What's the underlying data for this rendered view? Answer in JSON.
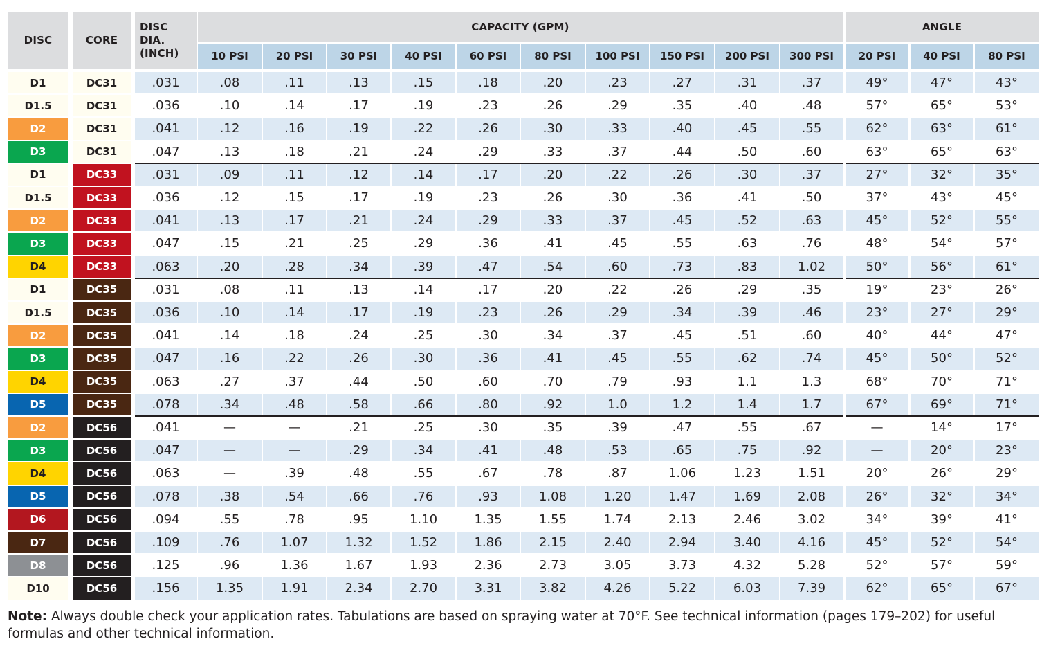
{
  "headers": {
    "disc": "DISC",
    "core": "CORE",
    "disc_dia": "DISC DIA.\n(INCH)",
    "capacity": "CAPACITY (GPM)",
    "angle": "ANGLE",
    "capacity_psi": [
      "10 PSI",
      "20 PSI",
      "30 PSI",
      "40 PSI",
      "60 PSI",
      "80 PSI",
      "100 PSI",
      "150 PSI",
      "200 PSI",
      "300 PSI"
    ],
    "angle_psi": [
      "20 PSI",
      "40 PSI",
      "80 PSI"
    ]
  },
  "colors": {
    "header_gray": "#dcdddf",
    "subheader_blue": "#bdd5e7",
    "row_blue": "#dde9f4",
    "label_cream": "#fffdf0",
    "disc": {
      "D2": "#f89c3f",
      "D3": "#0aa64f",
      "D4": "#ffd400",
      "D5": "#0865b0",
      "D6": "#b3171f",
      "D7": "#4a2712",
      "D8": "#8d9094"
    },
    "core": {
      "DC31": "#fffdf0",
      "DC33": "#c1121f",
      "DC35": "#4a2712",
      "DC56": "#231f20"
    }
  },
  "rows": [
    {
      "disc": "D1",
      "core": "DC31",
      "dia": ".031",
      "cap": [
        ".08",
        ".11",
        ".13",
        ".15",
        ".18",
        ".20",
        ".23",
        ".27",
        ".31",
        ".37"
      ],
      "angle": [
        "49°",
        "47°",
        "43°"
      ]
    },
    {
      "disc": "D1.5",
      "core": "DC31",
      "dia": ".036",
      "cap": [
        ".10",
        ".14",
        ".17",
        ".19",
        ".23",
        ".26",
        ".29",
        ".35",
        ".40",
        ".48"
      ],
      "angle": [
        "57°",
        "65°",
        "53°"
      ]
    },
    {
      "disc": "D2",
      "core": "DC31",
      "dia": ".041",
      "cap": [
        ".12",
        ".16",
        ".19",
        ".22",
        ".26",
        ".30",
        ".33",
        ".40",
        ".45",
        ".55"
      ],
      "angle": [
        "62°",
        "63°",
        "61°"
      ]
    },
    {
      "disc": "D3",
      "core": "DC31",
      "dia": ".047",
      "cap": [
        ".13",
        ".18",
        ".21",
        ".24",
        ".29",
        ".33",
        ".37",
        ".44",
        ".50",
        ".60"
      ],
      "angle": [
        "63°",
        "65°",
        "63°"
      ]
    },
    {
      "disc": "D1",
      "core": "DC33",
      "dia": ".031",
      "cap": [
        ".09",
        ".11",
        ".12",
        ".14",
        ".17",
        ".20",
        ".22",
        ".26",
        ".30",
        ".37"
      ],
      "angle": [
        "27°",
        "32°",
        "35°"
      ]
    },
    {
      "disc": "D1.5",
      "core": "DC33",
      "dia": ".036",
      "cap": [
        ".12",
        ".15",
        ".17",
        ".19",
        ".23",
        ".26",
        ".30",
        ".36",
        ".41",
        ".50"
      ],
      "angle": [
        "37°",
        "43°",
        "45°"
      ]
    },
    {
      "disc": "D2",
      "core": "DC33",
      "dia": ".041",
      "cap": [
        ".13",
        ".17",
        ".21",
        ".24",
        ".29",
        ".33",
        ".37",
        ".45",
        ".52",
        ".63"
      ],
      "angle": [
        "45°",
        "52°",
        "55°"
      ]
    },
    {
      "disc": "D3",
      "core": "DC33",
      "dia": ".047",
      "cap": [
        ".15",
        ".21",
        ".25",
        ".29",
        ".36",
        ".41",
        ".45",
        ".55",
        ".63",
        ".76"
      ],
      "angle": [
        "48°",
        "54°",
        "57°"
      ]
    },
    {
      "disc": "D4",
      "core": "DC33",
      "dia": ".063",
      "cap": [
        ".20",
        ".28",
        ".34",
        ".39",
        ".47",
        ".54",
        ".60",
        ".73",
        ".83",
        "1.02"
      ],
      "angle": [
        "50°",
        "56°",
        "61°"
      ]
    },
    {
      "disc": "D1",
      "core": "DC35",
      "dia": ".031",
      "cap": [
        ".08",
        ".11",
        ".13",
        ".14",
        ".17",
        ".20",
        ".22",
        ".26",
        ".29",
        ".35"
      ],
      "angle": [
        "19°",
        "23°",
        "26°"
      ]
    },
    {
      "disc": "D1.5",
      "core": "DC35",
      "dia": ".036",
      "cap": [
        ".10",
        ".14",
        ".17",
        ".19",
        ".23",
        ".26",
        ".29",
        ".34",
        ".39",
        ".46"
      ],
      "angle": [
        "23°",
        "27°",
        "29°"
      ]
    },
    {
      "disc": "D2",
      "core": "DC35",
      "dia": ".041",
      "cap": [
        ".14",
        ".18",
        ".24",
        ".25",
        ".30",
        ".34",
        ".37",
        ".45",
        ".51",
        ".60"
      ],
      "angle": [
        "40°",
        "44°",
        "47°"
      ]
    },
    {
      "disc": "D3",
      "core": "DC35",
      "dia": ".047",
      "cap": [
        ".16",
        ".22",
        ".26",
        ".30",
        ".36",
        ".41",
        ".45",
        ".55",
        ".62",
        ".74"
      ],
      "angle": [
        "45°",
        "50°",
        "52°"
      ]
    },
    {
      "disc": "D4",
      "core": "DC35",
      "dia": ".063",
      "cap": [
        ".27",
        ".37",
        ".44",
        ".50",
        ".60",
        ".70",
        ".79",
        ".93",
        "1.1",
        "1.3"
      ],
      "angle": [
        "68°",
        "70°",
        "71°"
      ]
    },
    {
      "disc": "D5",
      "core": "DC35",
      "dia": ".078",
      "cap": [
        ".34",
        ".48",
        ".58",
        ".66",
        ".80",
        ".92",
        "1.0",
        "1.2",
        "1.4",
        "1.7"
      ],
      "angle": [
        "67°",
        "69°",
        "71°"
      ]
    },
    {
      "disc": "D2",
      "core": "DC56",
      "dia": ".041",
      "cap": [
        "—",
        "—",
        ".21",
        ".25",
        ".30",
        ".35",
        ".39",
        ".47",
        ".55",
        ".67"
      ],
      "angle": [
        "—",
        "14°",
        "17°"
      ]
    },
    {
      "disc": "D3",
      "core": "DC56",
      "dia": ".047",
      "cap": [
        "—",
        "—",
        ".29",
        ".34",
        ".41",
        ".48",
        ".53",
        ".65",
        ".75",
        ".92"
      ],
      "angle": [
        "—",
        "20°",
        "23°"
      ]
    },
    {
      "disc": "D4",
      "core": "DC56",
      "dia": ".063",
      "cap": [
        "—",
        ".39",
        ".48",
        ".55",
        ".67",
        ".78",
        ".87",
        "1.06",
        "1.23",
        "1.51"
      ],
      "angle": [
        "20°",
        "26°",
        "29°"
      ]
    },
    {
      "disc": "D5",
      "core": "DC56",
      "dia": ".078",
      "cap": [
        ".38",
        ".54",
        ".66",
        ".76",
        ".93",
        "1.08",
        "1.20",
        "1.47",
        "1.69",
        "2.08"
      ],
      "angle": [
        "26°",
        "32°",
        "34°"
      ]
    },
    {
      "disc": "D6",
      "core": "DC56",
      "dia": ".094",
      "cap": [
        ".55",
        ".78",
        ".95",
        "1.10",
        "1.35",
        "1.55",
        "1.74",
        "2.13",
        "2.46",
        "3.02"
      ],
      "angle": [
        "34°",
        "39°",
        "41°"
      ]
    },
    {
      "disc": "D7",
      "core": "DC56",
      "dia": ".109",
      "cap": [
        ".76",
        "1.07",
        "1.32",
        "1.52",
        "1.86",
        "2.15",
        "2.40",
        "2.94",
        "3.40",
        "4.16"
      ],
      "angle": [
        "45°",
        "52°",
        "54°"
      ]
    },
    {
      "disc": "D8",
      "core": "DC56",
      "dia": ".125",
      "cap": [
        ".96",
        "1.36",
        "1.67",
        "1.93",
        "2.36",
        "2.73",
        "3.05",
        "3.73",
        "4.32",
        "5.28"
      ],
      "angle": [
        "52°",
        "57°",
        "59°"
      ]
    },
    {
      "disc": "D10",
      "core": "DC56",
      "dia": ".156",
      "cap": [
        "1.35",
        "1.91",
        "2.34",
        "2.70",
        "3.31",
        "3.82",
        "4.26",
        "5.22",
        "6.03",
        "7.39"
      ],
      "angle": [
        "62°",
        "65°",
        "67°"
      ]
    }
  ],
  "note": {
    "label": "Note:",
    "text": " Always double check your application rates. Tabulations are based on spraying water at 70°F. See technical information (pages 179–202) for useful formulas and other technical information."
  }
}
